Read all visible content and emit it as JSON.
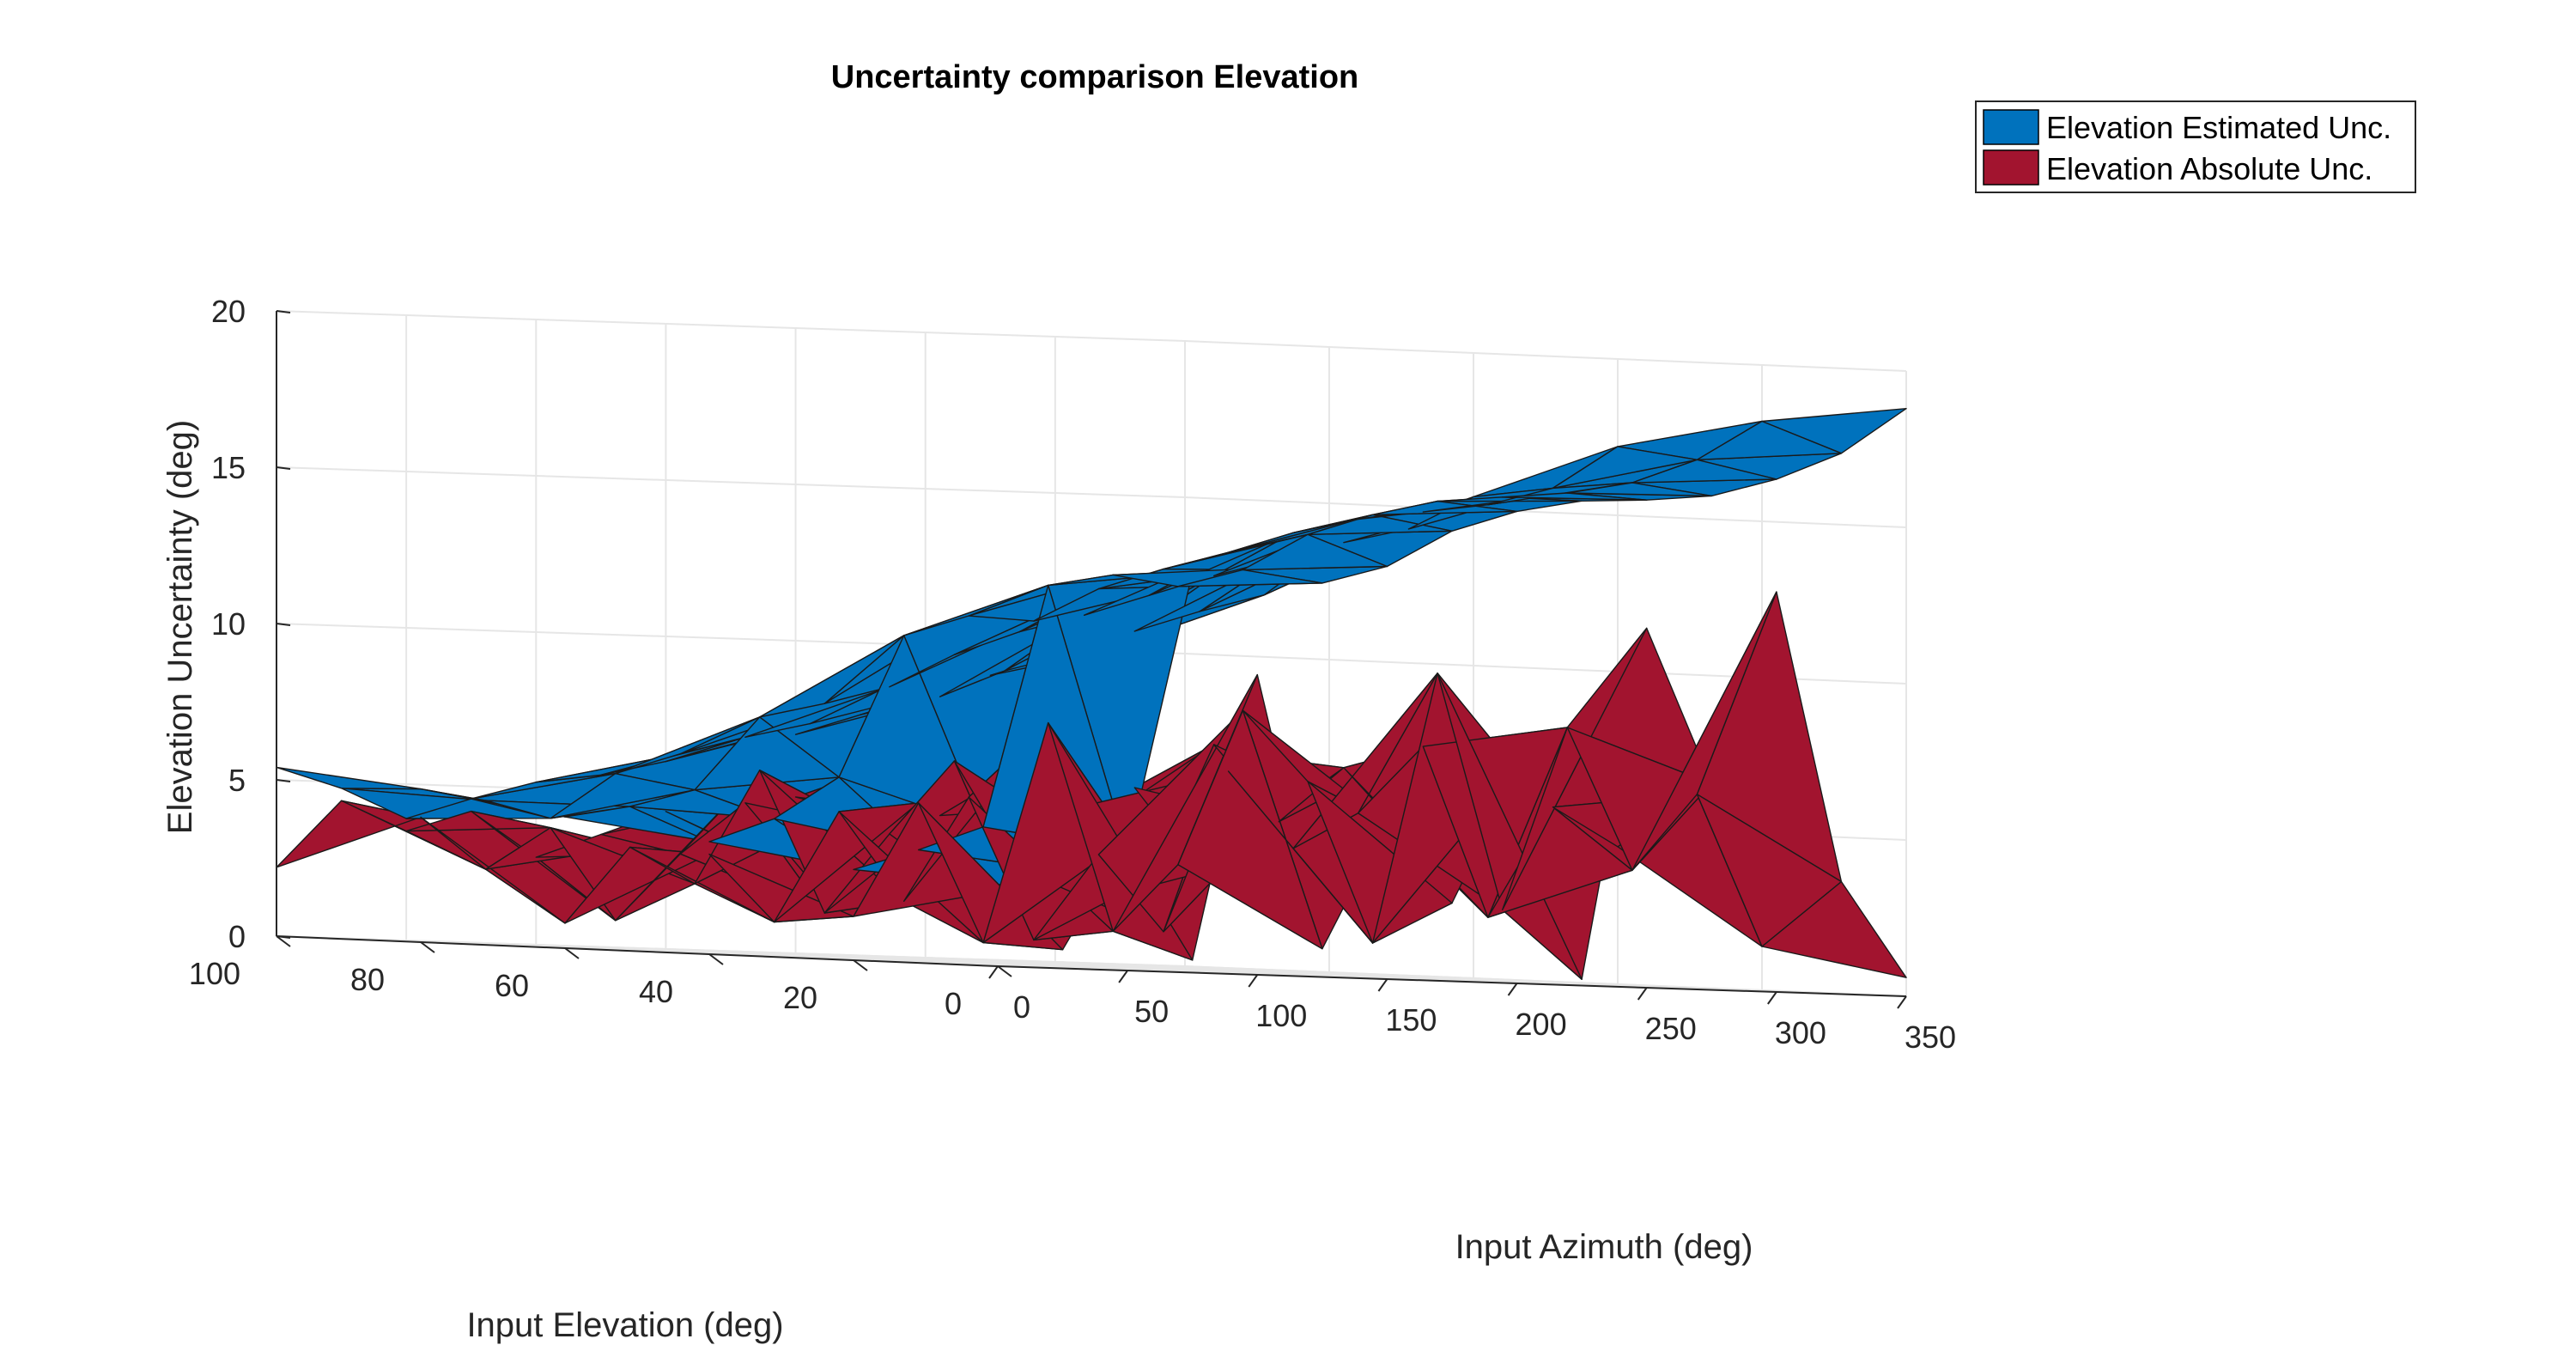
{
  "chart_data": {
    "type": "surface3d",
    "title": "Uncertainty comparison Elevation",
    "xlabel": "Input Azimuth (deg)",
    "ylabel": "Input Elevation (deg)",
    "zlabel": "Elevation  Uncertainty (deg)",
    "xlim": [
      0,
      350
    ],
    "ylim": [
      0,
      100
    ],
    "zlim": [
      0,
      20
    ],
    "x_ticks": [
      "0",
      "50",
      "100",
      "150",
      "200",
      "250",
      "300",
      "350"
    ],
    "y_ticks": [
      "0",
      "20",
      "40",
      "60",
      "80",
      "100"
    ],
    "z_ticks": [
      "0",
      "5",
      "10",
      "15",
      "20"
    ],
    "grid": true,
    "legend_position": "top-right",
    "series": [
      {
        "name": "Elevation Estimated Unc.",
        "color": "#0072BD",
        "azimuth": [
          0,
          25,
          50,
          75,
          100,
          125,
          150,
          175,
          200,
          225,
          250,
          275,
          300,
          325,
          350
        ],
        "elevation_rows": [
          0,
          20,
          40,
          60,
          80,
          100
        ],
        "uncertainty": [
          [
            2.6,
            3.1,
            3.8,
            12.8,
            13.0,
            12.6,
            13.2,
            14.4,
            15.1,
            15.5,
            15.6,
            15.8,
            16.4,
            17.3,
            18.8
          ],
          [
            2.9,
            3.6,
            4.4,
            12.2,
            12.6,
            12.3,
            12.9,
            14.1,
            14.8,
            15.3,
            15.5,
            15.7,
            16.1,
            16.9,
            18.2
          ],
          [
            3.6,
            4.4,
            5.8,
            10.4,
            11.1,
            11.0,
            12.1,
            12.8,
            13.4,
            14.1,
            14.6,
            14.9,
            15.2,
            15.8,
            17.2
          ],
          [
            4.2,
            4.6,
            5.2,
            7.6,
            8.1,
            8.7,
            9.8,
            10.6,
            11.2,
            11.9,
            12.6,
            13.2,
            13.8,
            14.3,
            15.4
          ],
          [
            4.9,
            4.6,
            4.1,
            5.6,
            6.3,
            6.9,
            7.4,
            8.0,
            8.4,
            9.3,
            9.9,
            10.7,
            11.4,
            12.0,
            13.6
          ],
          [
            5.4,
            4.8,
            3.9,
            4.6,
            5.2,
            5.5,
            6.0,
            6.6,
            7.0,
            7.7,
            8.4,
            9.1,
            9.6,
            10.2,
            11.4
          ]
        ]
      },
      {
        "name": "Elevation Absolute Unc.",
        "color": "#A2142F",
        "azimuth": [
          0,
          25,
          50,
          75,
          100,
          125,
          150,
          175,
          200,
          225,
          250,
          275,
          300,
          325,
          350
        ],
        "elevation_rows": [
          0,
          20,
          40,
          60,
          80,
          100
        ],
        "uncertainty": [
          [
            2.4,
            0.6,
            4.2,
            0.4,
            9.6,
            0.9,
            5.0,
            2.5,
            6.8,
            0.2,
            11.5,
            6.6,
            12.8,
            3.6,
            0.6
          ],
          [
            1.4,
            5.1,
            0.7,
            7.8,
            1.2,
            3.4,
            8.4,
            6.2,
            1.1,
            9.8,
            2.3,
            8.2,
            3.7,
            6.2,
            1.4
          ],
          [
            3.2,
            1.1,
            4.7,
            1.9,
            5.3,
            0.8,
            3.6,
            1.2,
            6.4,
            4.0,
            5.2,
            7.4,
            2.0,
            5.6,
            4.4
          ],
          [
            0.8,
            3.3,
            2.2,
            5.9,
            1.4,
            4.0,
            6.4,
            3.0,
            5.1,
            2.6,
            7.2,
            4.8,
            6.6,
            4.4,
            5.4
          ],
          [
            4.0,
            2.4,
            3.8,
            0.9,
            3.1,
            4.8,
            2.4,
            6.0,
            4.6,
            5.9,
            3.9,
            5.7,
            3.1,
            6.8,
            4.9
          ],
          [
            2.2,
            4.4,
            3.5,
            4.2,
            2.8,
            3.6,
            4.4,
            3.5,
            5.0,
            4.5,
            4.6,
            3.8,
            5.6,
            4.9,
            5.3
          ]
        ]
      }
    ]
  }
}
